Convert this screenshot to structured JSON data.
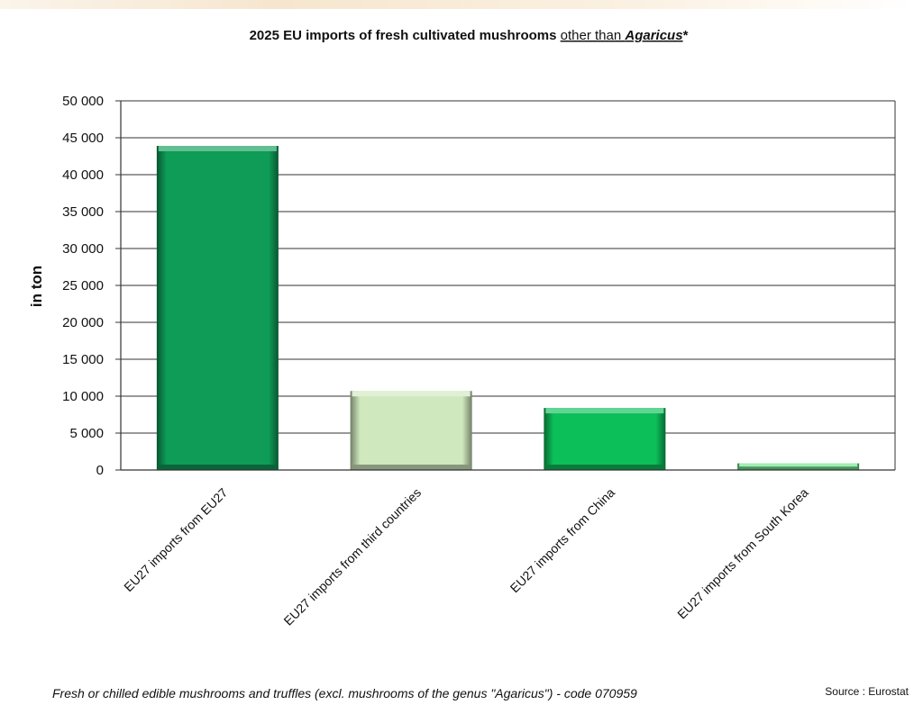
{
  "chart_data": {
    "type": "bar",
    "title_parts": [
      {
        "text": "2025 EU imports of fresh cultivated mushrooms ",
        "style": "bold"
      },
      {
        "text": "other than ",
        "style": "underline"
      },
      {
        "text": "Agaricus",
        "style": "bold-italic-underline"
      },
      {
        "text": "*",
        "style": "bold"
      }
    ],
    "ylabel": "in ton",
    "ylim": [
      0,
      50000
    ],
    "yticks": [
      {
        "value": 0,
        "label": "0"
      },
      {
        "value": 5000,
        "label": "5 000"
      },
      {
        "value": 10000,
        "label": "10 000"
      },
      {
        "value": 15000,
        "label": "15 000"
      },
      {
        "value": 20000,
        "label": "20 000"
      },
      {
        "value": 25000,
        "label": "25 000"
      },
      {
        "value": 30000,
        "label": "30 000"
      },
      {
        "value": 35000,
        "label": "35 000"
      },
      {
        "value": 40000,
        "label": "40 000"
      },
      {
        "value": 45000,
        "label": "45 000"
      },
      {
        "value": 50000,
        "label": "50 000"
      }
    ],
    "grid": true,
    "categories": [
      "EU27 imports from EU27",
      "EU27 imports from third countries",
      "EU27 imports from China",
      "EU27 imports from South Korea"
    ],
    "values": [
      43900,
      10700,
      8400,
      900
    ],
    "colors": [
      "#0e9c57",
      "#cfe8bd",
      "#0cbf59",
      "#6fe38a"
    ]
  },
  "footnote": "Fresh or chilled edible mushrooms and truffles (excl. mushrooms of the genus \"Agaricus\") - code 070959",
  "source": "Source : Eurostat"
}
